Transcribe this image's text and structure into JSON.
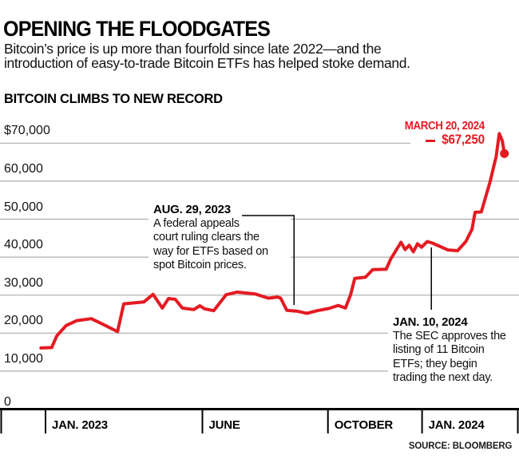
{
  "header": {
    "title": "OPENING THE FLOODGATES",
    "subtitle_line1": "Bitcoin’s price is up more than fourfold since late 2022—and the",
    "subtitle_line2": "introduction of easy-to-trade Bitcoin ETFs has helped stoke demand.",
    "kicker": "BITCOIN CLIMBS TO NEW RECORD"
  },
  "source": "SOURCE: BLOOMBERG",
  "colors": {
    "accent_red": "#e41a22",
    "grid": "#adadad",
    "axis": "#000000",
    "text": "#131313"
  },
  "chart_data": {
    "type": "line",
    "title": "BITCOIN CLIMBS TO NEW RECORD",
    "ylabel": "",
    "xlabel": "",
    "ylim": [
      0,
      75000
    ],
    "grid": true,
    "series": [
      {
        "name": "Bitcoin price (USD)",
        "points": [
          [
            "2022-12-27",
            16100
          ],
          [
            "2023-01-07",
            16200
          ],
          [
            "2023-01-12",
            19300
          ],
          [
            "2023-01-21",
            22000
          ],
          [
            "2023-02-01",
            23300
          ],
          [
            "2023-02-15",
            23800
          ],
          [
            "2023-02-25",
            22500
          ],
          [
            "2023-03-10",
            20400
          ],
          [
            "2023-03-16",
            27700
          ],
          [
            "2023-04-05",
            28200
          ],
          [
            "2023-04-14",
            30200
          ],
          [
            "2023-04-23",
            26600
          ],
          [
            "2023-04-29",
            29100
          ],
          [
            "2023-05-05",
            28900
          ],
          [
            "2023-05-12",
            26600
          ],
          [
            "2023-05-23",
            26200
          ],
          [
            "2023-05-29",
            27200
          ],
          [
            "2023-06-03",
            26400
          ],
          [
            "2023-06-12",
            25900
          ],
          [
            "2023-06-24",
            30100
          ],
          [
            "2023-07-04",
            30800
          ],
          [
            "2023-07-22",
            30300
          ],
          [
            "2023-08-04",
            29200
          ],
          [
            "2023-08-13",
            29500
          ],
          [
            "2023-08-16",
            29200
          ],
          [
            "2023-08-22",
            26000
          ],
          [
            "2023-09-01",
            25800
          ],
          [
            "2023-09-11",
            25200
          ],
          [
            "2023-09-21",
            25900
          ],
          [
            "2023-10-02",
            26500
          ],
          [
            "2023-10-11",
            27300
          ],
          [
            "2023-10-18",
            26600
          ],
          [
            "2023-10-23",
            30100
          ],
          [
            "2023-10-27",
            34400
          ],
          [
            "2023-11-07",
            34700
          ],
          [
            "2023-11-14",
            36700
          ],
          [
            "2023-11-27",
            36800
          ],
          [
            "2023-12-01",
            39500
          ],
          [
            "2023-12-11",
            43900
          ],
          [
            "2023-12-15",
            42000
          ],
          [
            "2023-12-19",
            43100
          ],
          [
            "2023-12-23",
            41400
          ],
          [
            "2023-12-27",
            43500
          ],
          [
            "2023-12-31",
            42600
          ],
          [
            "2024-01-06",
            44100
          ],
          [
            "2024-01-11",
            43700
          ],
          [
            "2024-01-26",
            41900
          ],
          [
            "2024-02-05",
            41700
          ],
          [
            "2024-02-13",
            44100
          ],
          [
            "2024-02-19",
            47300
          ],
          [
            "2024-02-22",
            51800
          ],
          [
            "2024-02-28",
            51900
          ],
          [
            "2024-03-06",
            59800
          ],
          [
            "2024-03-12",
            66500
          ],
          [
            "2024-03-15",
            72500
          ],
          [
            "2024-03-18",
            70600
          ],
          [
            "2024-03-20",
            67250
          ]
        ]
      }
    ],
    "y_axis": {
      "ticks": [
        {
          "value": 70000,
          "label": "$70,000"
        },
        {
          "value": 60000,
          "label": "60,000"
        },
        {
          "value": 50000,
          "label": "50,000"
        },
        {
          "value": 40000,
          "label": "40,000"
        },
        {
          "value": 30000,
          "label": "30,000"
        },
        {
          "value": 20000,
          "label": "20,000"
        },
        {
          "value": 10000,
          "label": "10,000"
        },
        {
          "value": 0,
          "label": "0"
        }
      ]
    },
    "x_axis": {
      "ticks": [
        {
          "date": "2023-01-01",
          "label": "JAN. 2023"
        },
        {
          "date": "2023-06-01",
          "label": "JUNE"
        },
        {
          "date": "2023-10-01",
          "label": "OCTOBER"
        },
        {
          "date": "2024-01-01",
          "label": "JAN. 2024"
        }
      ]
    },
    "annotations": [
      {
        "id": "aug-29-2023",
        "date": "2023-08-29",
        "label": "AUG. 29, 2023",
        "text_lines": [
          "A federal appeals",
          "court ruling clears the",
          "way for ETFs based on",
          "spot Bitcoin prices."
        ]
      },
      {
        "id": "jan-10-2024",
        "date": "2024-01-10",
        "label": "JAN. 10, 2024",
        "text_lines": [
          "The SEC approves the",
          "listing of 11 Bitcoin",
          "ETFs; they begin",
          "trading the next day."
        ]
      },
      {
        "id": "march-20-2024",
        "date": "2024-03-20",
        "label": "MARCH 20, 2024",
        "value_label": "$67,250"
      }
    ]
  }
}
